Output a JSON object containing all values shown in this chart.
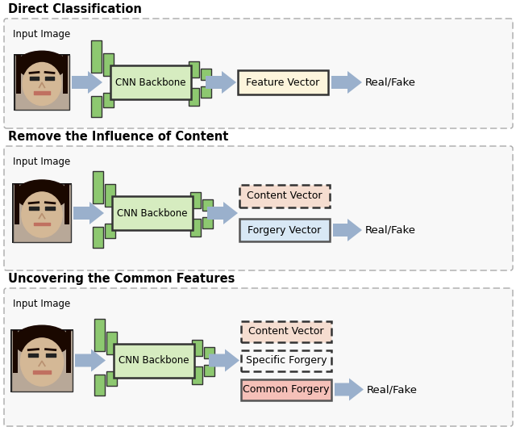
{
  "title1": "Direct Classification",
  "title2": "Remove the Influence of Content",
  "title3": "Uncovering the Common Features",
  "panel1": {
    "input_label": "Input Image",
    "cnn_label": "CNN Backbone",
    "boxes": [
      {
        "label": "Feature Vector",
        "bg": "#fdf5dc",
        "edge": "#333333",
        "edge_style": "solid"
      }
    ],
    "output_label": "Real/Fake"
  },
  "panel2": {
    "input_label": "Input Image",
    "cnn_label": "CNN Backbone",
    "boxes": [
      {
        "label": "Content Vector",
        "bg": "#f5ddd0",
        "edge": "#333333",
        "edge_style": "dashed"
      },
      {
        "label": "Forgery Vector",
        "bg": "#d8e8f5",
        "edge": "#555555",
        "edge_style": "solid"
      }
    ],
    "output_label": "Real/Fake"
  },
  "panel3": {
    "input_label": "Input Image",
    "cnn_label": "CNN Backbone",
    "boxes": [
      {
        "label": "Content Vector",
        "bg": "#f5ddd0",
        "edge": "#333333",
        "edge_style": "dashed"
      },
      {
        "label": "Specific Forgery",
        "bg": "#f8f8f8",
        "edge": "#333333",
        "edge_style": "dashed"
      },
      {
        "label": "Common Forgery",
        "bg": "#f5c0b8",
        "edge": "#555555",
        "edge_style": "solid"
      }
    ],
    "output_label": "Real/Fake"
  },
  "bg_color": "#ffffff",
  "arrow_color": "#9ab0cc",
  "cnn_bg": "#d6ecc0",
  "cnn_edge": "#333333",
  "bar_color": "#8dc870",
  "bar_edge": "#333333"
}
